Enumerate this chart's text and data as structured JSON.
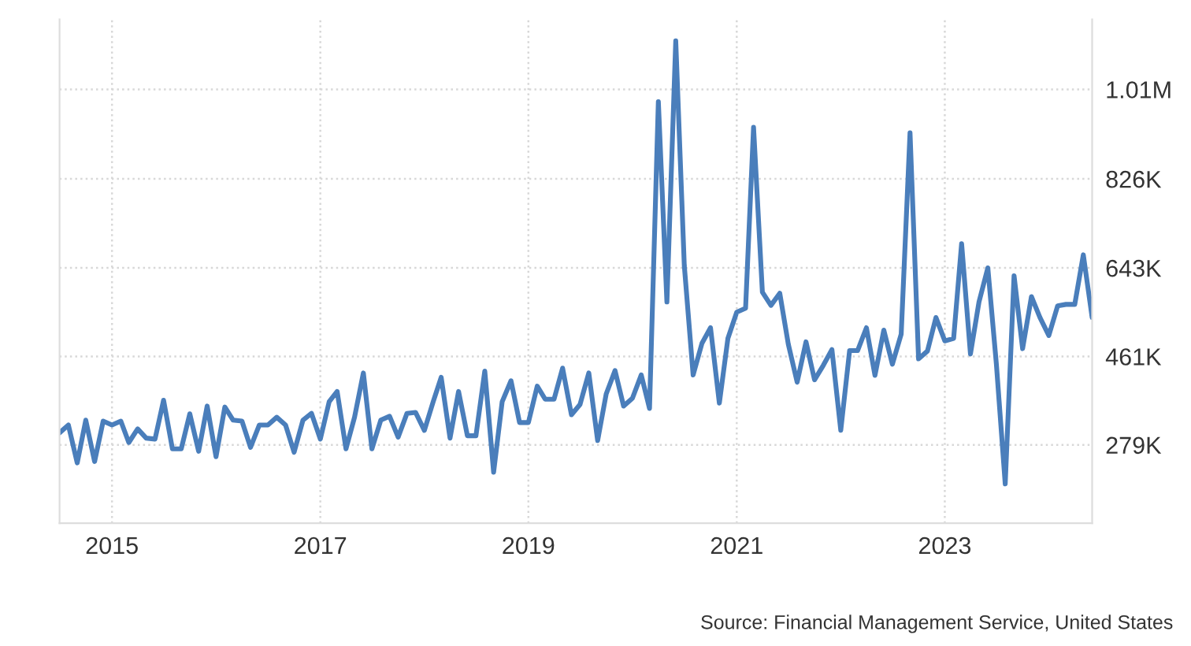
{
  "chart_data": {
    "type": "line",
    "x": [
      "2014-07",
      "2014-08",
      "2014-09",
      "2014-10",
      "2014-11",
      "2014-12",
      "2015-01",
      "2015-02",
      "2015-03",
      "2015-04",
      "2015-05",
      "2015-06",
      "2015-07",
      "2015-08",
      "2015-09",
      "2015-10",
      "2015-11",
      "2015-12",
      "2016-01",
      "2016-02",
      "2016-03",
      "2016-04",
      "2016-05",
      "2016-06",
      "2016-07",
      "2016-08",
      "2016-09",
      "2016-10",
      "2016-11",
      "2016-12",
      "2017-01",
      "2017-02",
      "2017-03",
      "2017-04",
      "2017-05",
      "2017-06",
      "2017-07",
      "2017-08",
      "2017-09",
      "2017-10",
      "2017-11",
      "2017-12",
      "2018-01",
      "2018-02",
      "2018-03",
      "2018-04",
      "2018-05",
      "2018-06",
      "2018-07",
      "2018-08",
      "2018-09",
      "2018-10",
      "2018-11",
      "2018-12",
      "2019-01",
      "2019-02",
      "2019-03",
      "2019-04",
      "2019-05",
      "2019-06",
      "2019-07",
      "2019-08",
      "2019-09",
      "2019-10",
      "2019-11",
      "2019-12",
      "2020-01",
      "2020-02",
      "2020-03",
      "2020-04",
      "2020-05",
      "2020-06",
      "2020-07",
      "2020-08",
      "2020-09",
      "2020-10",
      "2020-11",
      "2020-12",
      "2021-01",
      "2021-02",
      "2021-03",
      "2021-04",
      "2021-05",
      "2021-06",
      "2021-07",
      "2021-08",
      "2021-09",
      "2021-10",
      "2021-11",
      "2021-12",
      "2022-01",
      "2022-02",
      "2022-03",
      "2022-04",
      "2022-05",
      "2022-06",
      "2022-07",
      "2022-08",
      "2022-09",
      "2022-10",
      "2022-11",
      "2022-12",
      "2023-01",
      "2023-02",
      "2023-03",
      "2023-04",
      "2023-05",
      "2023-06",
      "2023-07",
      "2023-08",
      "2023-09",
      "2023-10",
      "2023-11",
      "2023-12",
      "2024-01",
      "2024-02",
      "2024-03",
      "2024-04",
      "2024-05",
      "2024-06"
    ],
    "series": [
      {
        "color": "#4a7ebb",
        "values": [
          304000,
          320000,
          242000,
          330000,
          245000,
          328000,
          320000,
          328000,
          284000,
          312000,
          293000,
          291000,
          371000,
          271000,
          271000,
          343000,
          266000,
          359000,
          255000,
          357000,
          330000,
          328000,
          274000,
          320000,
          320000,
          336000,
          320000,
          264000,
          330000,
          344000,
          291000,
          368000,
          389000,
          271000,
          336000,
          427000,
          271000,
          330000,
          338000,
          295000,
          344000,
          346000,
          309000,
          368000,
          418000,
          293000,
          389000,
          298000,
          298000,
          431000,
          223000,
          368000,
          411000,
          325000,
          325000,
          400000,
          373000,
          373000,
          437000,
          341000,
          362000,
          427000,
          288000,
          384000,
          432000,
          359000,
          375000,
          423000,
          354000,
          985000,
          573000,
          1110000,
          648000,
          423000,
          488000,
          520000,
          365000,
          498000,
          552000,
          560000,
          932000,
          593000,
          566000,
          591000,
          486000,
          408000,
          491000,
          413000,
          443000,
          475000,
          309000,
          473000,
          473000,
          520000,
          422000,
          515000,
          445000,
          507000,
          921000,
          456000,
          472000,
          541000,
          493000,
          498000,
          693000,
          466000,
          573000,
          643000,
          445000,
          199000,
          627000,
          477000,
          584000,
          541000,
          504000,
          565000,
          568000,
          568000,
          670000,
          541000
        ]
      }
    ],
    "xlim": [
      "2014-07",
      "2024-06"
    ],
    "xticks": [
      {
        "value": "2015",
        "label": "2015"
      },
      {
        "value": "2017",
        "label": "2017"
      },
      {
        "value": "2019",
        "label": "2019"
      },
      {
        "value": "2021",
        "label": "2021"
      },
      {
        "value": "2023",
        "label": "2023"
      }
    ],
    "ylim": [
      118000,
      1154000
    ],
    "yticks": [
      {
        "value": 279000,
        "label": "279K"
      },
      {
        "value": 461000,
        "label": "461K"
      },
      {
        "value": 643000,
        "label": "643K"
      },
      {
        "value": 826000,
        "label": "826K"
      },
      {
        "value": 1010000,
        "label": "1.01M"
      }
    ],
    "grid": true,
    "line_style": "solid",
    "annotations": [
      "Source: Financial Management Service, United States"
    ]
  }
}
